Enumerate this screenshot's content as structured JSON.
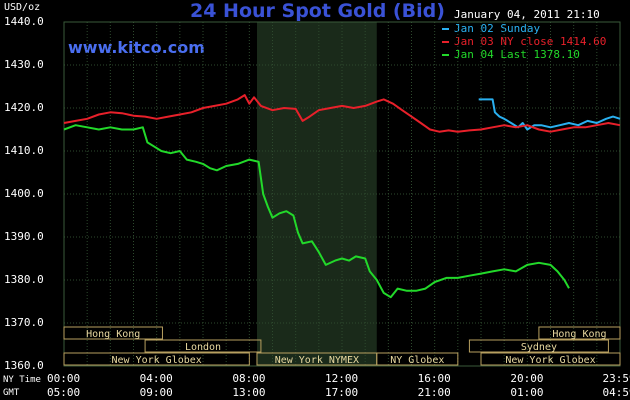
{
  "header": {
    "unit": "USD/oz",
    "site": "www.kitco.com",
    "timestamp": "January 04, 2011 21:10"
  },
  "legend": [
    {
      "text": "Jan 02 Sunday",
      "color": "#2ab0f0"
    },
    {
      "text": "Jan 03 NY close 1414.60",
      "color": "#e8202a"
    },
    {
      "text": "Jan 04 Last 1378.10",
      "color": "#22d92a"
    }
  ],
  "markets": {
    "row1": [
      {
        "label": "Hong Kong",
        "start": 0,
        "end": 4.25
      },
      {
        "label": "Hong Kong",
        "start": 20.5,
        "end": 24
      }
    ],
    "row2": [
      {
        "label": "London",
        "start": 3.5,
        "end": 8.5
      },
      {
        "label": "Sydney",
        "start": 17.5,
        "end": 23.5
      }
    ],
    "row3": [
      {
        "label": "New York Globex",
        "start": 0,
        "end": 8
      },
      {
        "label": "New York NYMEX",
        "start": 8.33,
        "end": 13.5
      },
      {
        "label": "NY Globex",
        "start": 13.5,
        "end": 17
      },
      {
        "label": "New York Globex",
        "start": 18,
        "end": 24
      }
    ]
  },
  "axis_rows": {
    "ny_label": "NY Time",
    "gmt_label": "GMT",
    "ny": [
      "00:00",
      "04:00",
      "08:00",
      "12:00",
      "16:00",
      "20:00",
      "23:59"
    ],
    "gmt": [
      "05:00",
      "09:00",
      "13:00",
      "17:00",
      "21:00",
      "01:00",
      "04:59"
    ]
  },
  "chart_data": {
    "type": "line",
    "title": "24 Hour Spot Gold (Bid)",
    "xlabel": "NY Time",
    "ylabel": "USD/oz",
    "xlim": [
      0,
      24
    ],
    "ylim": [
      1360,
      1440
    ],
    "yticks": [
      "1440.0",
      "1430.0",
      "1420.0",
      "1410.0",
      "1400.0",
      "1390.0",
      "1380.0",
      "1370.0",
      "1360.0"
    ],
    "xticks_hours": [
      0,
      4,
      8,
      12,
      16,
      20,
      23.98
    ],
    "grid": true,
    "shaded_hours": [
      8.33,
      13.5
    ],
    "series": [
      {
        "name": "Jan 02 Sunday",
        "color": "#2ab0f0",
        "points": [
          [
            17.9,
            1422.0
          ],
          [
            18.5,
            1422.0
          ],
          [
            18.6,
            1419.0
          ],
          [
            18.8,
            1418.0
          ],
          [
            19.0,
            1417.5
          ],
          [
            19.3,
            1416.5
          ],
          [
            19.6,
            1415.5
          ],
          [
            19.8,
            1416.5
          ],
          [
            20.0,
            1415.0
          ],
          [
            20.3,
            1416.0
          ],
          [
            20.6,
            1416.0
          ],
          [
            21.0,
            1415.5
          ],
          [
            21.4,
            1416.0
          ],
          [
            21.8,
            1416.5
          ],
          [
            22.2,
            1416.0
          ],
          [
            22.6,
            1417.0
          ],
          [
            23.0,
            1416.5
          ],
          [
            23.4,
            1417.5
          ],
          [
            23.7,
            1418.0
          ],
          [
            24.0,
            1417.5
          ]
        ]
      },
      {
        "name": "Jan 03 NY close 1414.60",
        "color": "#e8202a",
        "points": [
          [
            0,
            1416.5
          ],
          [
            0.5,
            1417.0
          ],
          [
            1.0,
            1417.5
          ],
          [
            1.5,
            1418.5
          ],
          [
            2.0,
            1419.0
          ],
          [
            2.5,
            1418.8
          ],
          [
            3.0,
            1418.2
          ],
          [
            3.5,
            1418.0
          ],
          [
            4.0,
            1417.5
          ],
          [
            4.5,
            1418.0
          ],
          [
            5.0,
            1418.5
          ],
          [
            5.5,
            1419.0
          ],
          [
            6.0,
            1420.0
          ],
          [
            6.5,
            1420.5
          ],
          [
            7.0,
            1421.0
          ],
          [
            7.5,
            1422.0
          ],
          [
            7.8,
            1423.0
          ],
          [
            8.0,
            1421.0
          ],
          [
            8.2,
            1422.5
          ],
          [
            8.5,
            1420.5
          ],
          [
            9.0,
            1419.5
          ],
          [
            9.5,
            1420.0
          ],
          [
            10.0,
            1419.8
          ],
          [
            10.3,
            1417.0
          ],
          [
            10.6,
            1418.0
          ],
          [
            11.0,
            1419.5
          ],
          [
            11.5,
            1420.0
          ],
          [
            12.0,
            1420.5
          ],
          [
            12.5,
            1420.0
          ],
          [
            13.0,
            1420.5
          ],
          [
            13.5,
            1421.5
          ],
          [
            13.8,
            1422.0
          ],
          [
            14.2,
            1421.0
          ],
          [
            14.6,
            1419.5
          ],
          [
            15.0,
            1418.0
          ],
          [
            15.4,
            1416.5
          ],
          [
            15.8,
            1415.0
          ],
          [
            16.2,
            1414.5
          ],
          [
            16.6,
            1414.8
          ],
          [
            17.0,
            1414.5
          ],
          [
            17.5,
            1414.8
          ],
          [
            18.0,
            1415.0
          ],
          [
            18.5,
            1415.5
          ],
          [
            19.0,
            1416.0
          ],
          [
            19.5,
            1415.5
          ],
          [
            20.0,
            1416.0
          ],
          [
            20.5,
            1415.0
          ],
          [
            21.0,
            1414.5
          ],
          [
            21.5,
            1415.0
          ],
          [
            22.0,
            1415.5
          ],
          [
            22.5,
            1415.5
          ],
          [
            23.0,
            1416.0
          ],
          [
            23.5,
            1416.5
          ],
          [
            24.0,
            1416.0
          ]
        ]
      },
      {
        "name": "Jan 04 Last 1378.10",
        "color": "#22d92a",
        "points": [
          [
            0,
            1415.0
          ],
          [
            0.5,
            1416.0
          ],
          [
            1.0,
            1415.5
          ],
          [
            1.5,
            1415.0
          ],
          [
            2.0,
            1415.5
          ],
          [
            2.5,
            1415.0
          ],
          [
            3.0,
            1415.0
          ],
          [
            3.4,
            1415.5
          ],
          [
            3.6,
            1412.0
          ],
          [
            3.9,
            1411.0
          ],
          [
            4.2,
            1410.0
          ],
          [
            4.6,
            1409.5
          ],
          [
            5.0,
            1410.0
          ],
          [
            5.3,
            1408.0
          ],
          [
            5.7,
            1407.5
          ],
          [
            6.0,
            1407.0
          ],
          [
            6.3,
            1406.0
          ],
          [
            6.6,
            1405.5
          ],
          [
            7.0,
            1406.5
          ],
          [
            7.5,
            1407.0
          ],
          [
            8.0,
            1408.0
          ],
          [
            8.4,
            1407.5
          ],
          [
            8.6,
            1400.0
          ],
          [
            8.8,
            1397.0
          ],
          [
            9.0,
            1394.5
          ],
          [
            9.3,
            1395.5
          ],
          [
            9.6,
            1396.0
          ],
          [
            9.9,
            1395.0
          ],
          [
            10.1,
            1391.0
          ],
          [
            10.3,
            1388.5
          ],
          [
            10.7,
            1389.0
          ],
          [
            11.0,
            1386.5
          ],
          [
            11.3,
            1383.5
          ],
          [
            11.7,
            1384.5
          ],
          [
            12.0,
            1385.0
          ],
          [
            12.3,
            1384.5
          ],
          [
            12.6,
            1385.5
          ],
          [
            13.0,
            1385.0
          ],
          [
            13.2,
            1382.0
          ],
          [
            13.5,
            1380.0
          ],
          [
            13.8,
            1377.0
          ],
          [
            14.1,
            1376.0
          ],
          [
            14.4,
            1378.0
          ],
          [
            14.8,
            1377.5
          ],
          [
            15.2,
            1377.5
          ],
          [
            15.6,
            1378.0
          ],
          [
            16.0,
            1379.5
          ],
          [
            16.5,
            1380.5
          ],
          [
            17.0,
            1380.5
          ],
          [
            17.5,
            1381.0
          ],
          [
            18.0,
            1381.5
          ],
          [
            18.5,
            1382.0
          ],
          [
            19.0,
            1382.5
          ],
          [
            19.5,
            1382.0
          ],
          [
            20.0,
            1383.5
          ],
          [
            20.5,
            1384.0
          ],
          [
            21.0,
            1383.5
          ],
          [
            21.3,
            1382.0
          ],
          [
            21.6,
            1380.0
          ],
          [
            21.8,
            1378.1
          ]
        ]
      }
    ]
  }
}
